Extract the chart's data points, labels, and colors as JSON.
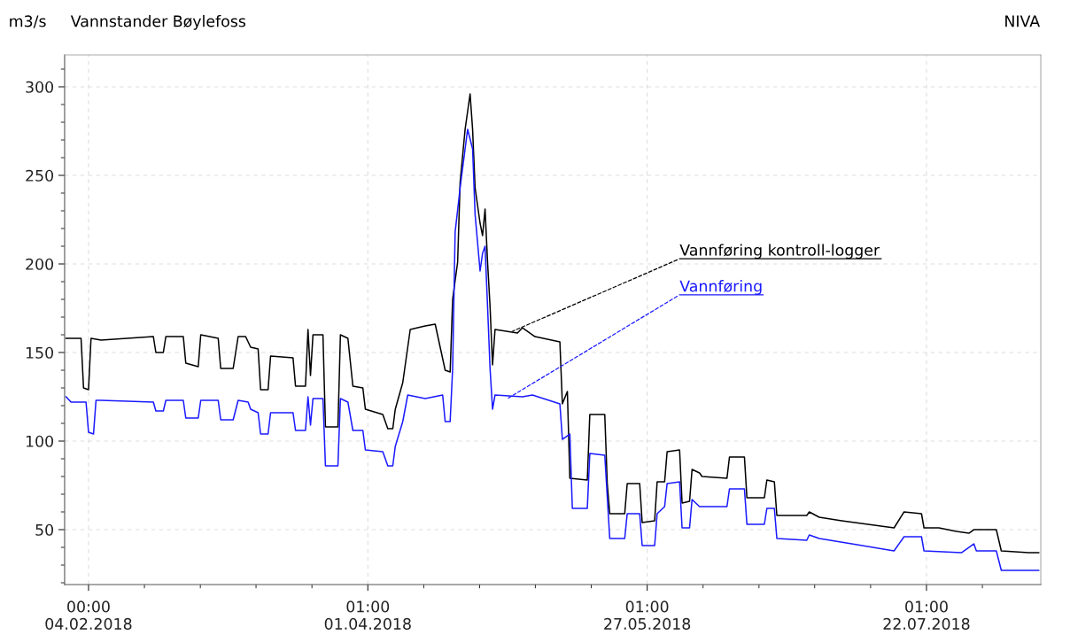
{
  "chart_data": {
    "type": "line",
    "title": "Vannstander Bøylefoss",
    "ylabel": "m3/s",
    "annotations": [
      "NIVA",
      {
        "text": "Vannføring kontroll-logger",
        "x": "2018-04-30",
        "y": 162
      },
      {
        "text": "Vannføring",
        "x": "2018-04-29",
        "y": 124
      }
    ],
    "series": [
      {
        "color": "#000000",
        "x": [
          "2018-01-30T12:00",
          "2018-02-02T12:00",
          "2018-02-03",
          "2018-02-04",
          "2018-02-04T12:00",
          "2018-02-06T12:00",
          "2018-02-17",
          "2018-02-17T12:00",
          "2018-02-19",
          "2018-02-19T12:00",
          "2018-02-23",
          "2018-02-23T12:00",
          "2018-02-26",
          "2018-02-26T12:00",
          "2018-03-02",
          "2018-03-02T12:00",
          "2018-03-05",
          "2018-03-06",
          "2018-03-07T12:00",
          "2018-03-08T12:00",
          "2018-03-10",
          "2018-03-10T12:00",
          "2018-03-12",
          "2018-03-12T12:00",
          "2018-03-17",
          "2018-03-17T12:00",
          "2018-03-19T12:00",
          "2018-03-20",
          "2018-03-20T12:00",
          "2018-03-21",
          "2018-03-23",
          "2018-03-23T12:00",
          "2018-03-26",
          "2018-03-26T12:00",
          "2018-03-28",
          "2018-03-29",
          "2018-03-31",
          "2018-03-31T12:00",
          "2018-04-04",
          "2018-04-05",
          "2018-04-06",
          "2018-04-06T12:00",
          "2018-04-08",
          "2018-04-09T12:00",
          "2018-04-12T12:00",
          "2018-04-14T12:00",
          "2018-04-16T12:00",
          "2018-04-17T12:00",
          "2018-04-18",
          "2018-04-19",
          "2018-04-19T12:00",
          "2018-04-20T12:00",
          "2018-04-21",
          "2018-04-21T12:00",
          "2018-04-22",
          "2018-04-22T12:00",
          "2018-04-23T12:00",
          "2018-04-24",
          "2018-04-24T12:00",
          "2018-04-25",
          "2018-04-25T12:00",
          "2018-04-26",
          "2018-04-26T12:00",
          "2018-05-01",
          "2018-05-02",
          "2018-05-04T12:00",
          "2018-05-09T12:00",
          "2018-05-10",
          "2018-05-11",
          "2018-05-11T12:00",
          "2018-05-15",
          "2018-05-15T12:00",
          "2018-05-18T12:00",
          "2018-05-19",
          "2018-05-19T12:00",
          "2018-05-22T12:00",
          "2018-05-23",
          "2018-05-25T12:00",
          "2018-05-26",
          "2018-05-28T12:00",
          "2018-05-29",
          "2018-05-30T12:00",
          "2018-05-31",
          "2018-06-02T12:00",
          "2018-06-03",
          "2018-06-04T12:00",
          "2018-06-05",
          "2018-06-06T12:00",
          "2018-06-07",
          "2018-06-12",
          "2018-06-12T12:00",
          "2018-06-15T12:00",
          "2018-06-16",
          "2018-06-19T12:00",
          "2018-06-20",
          "2018-06-21T12:00",
          "2018-06-22",
          "2018-06-28",
          "2018-06-28T12:00",
          "2018-06-30T12:00",
          "2018-07-05",
          "2018-07-15T12:00",
          "2018-07-17T12:00",
          "2018-07-21",
          "2018-07-21T12:00",
          "2018-07-24T12:00",
          "2018-07-28",
          "2018-07-30T12:00",
          "2018-07-31T12:00",
          "2018-08-02",
          "2018-08-05",
          "2018-08-06",
          "2018-08-11T12:00",
          "2018-08-13T12:00"
        ],
        "values": [
          158,
          158,
          130,
          129,
          158,
          157,
          159,
          150,
          150,
          159,
          159,
          144,
          142,
          160,
          158,
          141,
          141,
          159,
          159,
          153,
          152,
          129,
          129,
          148,
          147,
          131,
          131,
          163,
          137,
          160,
          160,
          108,
          108,
          160,
          158,
          131,
          130,
          118,
          115,
          107,
          107,
          118,
          133,
          163,
          165,
          166,
          140,
          139,
          180,
          201,
          246,
          276,
          286,
          296,
          276,
          243,
          223,
          216,
          231,
          201,
          176,
          143,
          163,
          161,
          164,
          159,
          156,
          121,
          128,
          79,
          78,
          115,
          115,
          76,
          59,
          59,
          76,
          76,
          54,
          55,
          77,
          77,
          94,
          95,
          65,
          66,
          84,
          82,
          80,
          79,
          91,
          91,
          68,
          68,
          78,
          77,
          58,
          58,
          60,
          57,
          55,
          51,
          60,
          59,
          51,
          51,
          49,
          48,
          50,
          50,
          50,
          38,
          37,
          37
        ]
      },
      {
        "color": "#1a1aff",
        "x": [
          "2018-01-30T12:00",
          "2018-01-31T12:00",
          "2018-02-03T12:00",
          "2018-02-04",
          "2018-02-05",
          "2018-02-05T12:00",
          "2018-02-06T12:00",
          "2018-02-17",
          "2018-02-17T12:00",
          "2018-02-19",
          "2018-02-19T12:00",
          "2018-02-23",
          "2018-02-23T12:00",
          "2018-02-26",
          "2018-02-26T12:00",
          "2018-03-02",
          "2018-03-02T12:00",
          "2018-03-05",
          "2018-03-06",
          "2018-03-08",
          "2018-03-08T12:00",
          "2018-03-10",
          "2018-03-10T12:00",
          "2018-03-12",
          "2018-03-12T12:00",
          "2018-03-17",
          "2018-03-17T12:00",
          "2018-03-19T12:00",
          "2018-03-20",
          "2018-03-20T12:00",
          "2018-03-21",
          "2018-03-23",
          "2018-03-23T12:00",
          "2018-03-26",
          "2018-03-26T12:00",
          "2018-03-28",
          "2018-03-29",
          "2018-03-31",
          "2018-03-31T12:00",
          "2018-04-04",
          "2018-04-05",
          "2018-04-06",
          "2018-04-06T12:00",
          "2018-04-08",
          "2018-04-09",
          "2018-04-12T12:00",
          "2018-04-16",
          "2018-04-16T12:00",
          "2018-04-17T12:00",
          "2018-04-18",
          "2018-04-18T12:00",
          "2018-04-19T12:00",
          "2018-04-20T12:00",
          "2018-04-21",
          "2018-04-22",
          "2018-04-22T12:00",
          "2018-04-23T12:00",
          "2018-04-24",
          "2018-04-24T12:00",
          "2018-04-25",
          "2018-04-25T12:00",
          "2018-04-26",
          "2018-04-26T12:00",
          "2018-05-02",
          "2018-05-04",
          "2018-05-09T12:00",
          "2018-05-10",
          "2018-05-11T12:00",
          "2018-05-12",
          "2018-05-15",
          "2018-05-15T12:00",
          "2018-05-18T12:00",
          "2018-05-19T12:00",
          "2018-05-22T12:00",
          "2018-05-23",
          "2018-05-25T12:00",
          "2018-05-26",
          "2018-05-28T12:00",
          "2018-05-29",
          "2018-05-30T12:00",
          "2018-05-31",
          "2018-06-02T12:00",
          "2018-06-03",
          "2018-06-04T12:00",
          "2018-06-05",
          "2018-06-06T12:00",
          "2018-06-12",
          "2018-06-12T12:00",
          "2018-06-15T12:00",
          "2018-06-16",
          "2018-06-19T12:00",
          "2018-06-20",
          "2018-06-21T12:00",
          "2018-06-22",
          "2018-06-28",
          "2018-06-28T12:00",
          "2018-06-30T12:00",
          "2018-07-07",
          "2018-07-15T12:00",
          "2018-07-17T12:00",
          "2018-07-21",
          "2018-07-21T12:00",
          "2018-07-29",
          "2018-07-31T12:00",
          "2018-08-01",
          "2018-08-05",
          "2018-08-06",
          "2018-08-13T12:00"
        ],
        "values": [
          125,
          122,
          122,
          105,
          104,
          123,
          123,
          122,
          117,
          117,
          123,
          123,
          113,
          113,
          123,
          123,
          112,
          112,
          123,
          122,
          118,
          116,
          104,
          104,
          116,
          116,
          106,
          106,
          125,
          109,
          124,
          124,
          86,
          86,
          124,
          122,
          106,
          106,
          95,
          94,
          86,
          86,
          97,
          111,
          126,
          124,
          126,
          111,
          111,
          141,
          218,
          243,
          265,
          276,
          265,
          228,
          196,
          206,
          210,
          176,
          141,
          118,
          126,
          125,
          126,
          121,
          101,
          104,
          62,
          62,
          93,
          92,
          45,
          45,
          59,
          59,
          41,
          41,
          59,
          63,
          76,
          77,
          51,
          51,
          67,
          63,
          63,
          73,
          73,
          53,
          53,
          62,
          62,
          45,
          44,
          47,
          45,
          42,
          38,
          46,
          46,
          38,
          37,
          42,
          38,
          38,
          27,
          27
        ]
      }
    ],
    "xlim": [
      "2018-01-30T05:00",
      "2018-08-13T22:00"
    ],
    "xticks": [
      {
        "value": "2018-02-04T00:00",
        "label": "00:00\n04.02.2018"
      },
      {
        "value": "2018-02-15T05:00",
        "label": null
      },
      {
        "value": "2018-02-26T10:00",
        "label": null
      },
      {
        "value": "2018-03-09T14:00",
        "label": null
      },
      {
        "value": "2018-03-20T19:00",
        "label": null
      },
      {
        "value": "2018-04-01T00:00",
        "label": "01:00\n01.04.2018"
      },
      {
        "value": "2018-04-12T05:00",
        "label": null
      },
      {
        "value": "2018-04-23T10:00",
        "label": null
      },
      {
        "value": "2018-05-04T14:00",
        "label": null
      },
      {
        "value": "2018-05-15T19:00",
        "label": null
      },
      {
        "value": "2018-05-27T00:00",
        "label": "01:00\n27.05.2018"
      },
      {
        "value": "2018-06-07T05:00",
        "label": null
      },
      {
        "value": "2018-06-18T10:00",
        "label": null
      },
      {
        "value": "2018-06-29T14:00",
        "label": null
      },
      {
        "value": "2018-07-10T19:00",
        "label": null
      },
      {
        "value": "2018-07-22T00:00",
        "label": "01:00\n22.07.2018"
      },
      {
        "value": "2018-08-02T05:00",
        "label": null
      }
    ],
    "ylim": [
      19,
      318
    ],
    "yticks": [
      {
        "value": 20,
        "label": null
      },
      {
        "value": 30,
        "label": null
      },
      {
        "value": 40,
        "label": null
      },
      50,
      {
        "value": 60,
        "label": null
      },
      {
        "value": 70,
        "label": null
      },
      {
        "value": 80,
        "label": null
      },
      {
        "value": 90,
        "label": null
      },
      100,
      {
        "value": 110,
        "label": null
      },
      {
        "value": 120,
        "label": null
      },
      {
        "value": 130,
        "label": null
      },
      {
        "value": 140,
        "label": null
      },
      150,
      {
        "value": 160,
        "label": null
      },
      {
        "value": 170,
        "label": null
      },
      {
        "value": 180,
        "label": null
      },
      {
        "value": 190,
        "label": null
      },
      200,
      {
        "value": 210,
        "label": null
      },
      {
        "value": 220,
        "label": null
      },
      {
        "value": 230,
        "label": null
      },
      {
        "value": 240,
        "label": null
      },
      250,
      {
        "value": 260,
        "label": null
      },
      {
        "value": 270,
        "label": null
      },
      {
        "value": 280,
        "label": null
      },
      {
        "value": 290,
        "label": null
      },
      300,
      {
        "value": 310,
        "label": null
      }
    ],
    "grid": true,
    "marker": "none",
    "line_style": "solid"
  }
}
